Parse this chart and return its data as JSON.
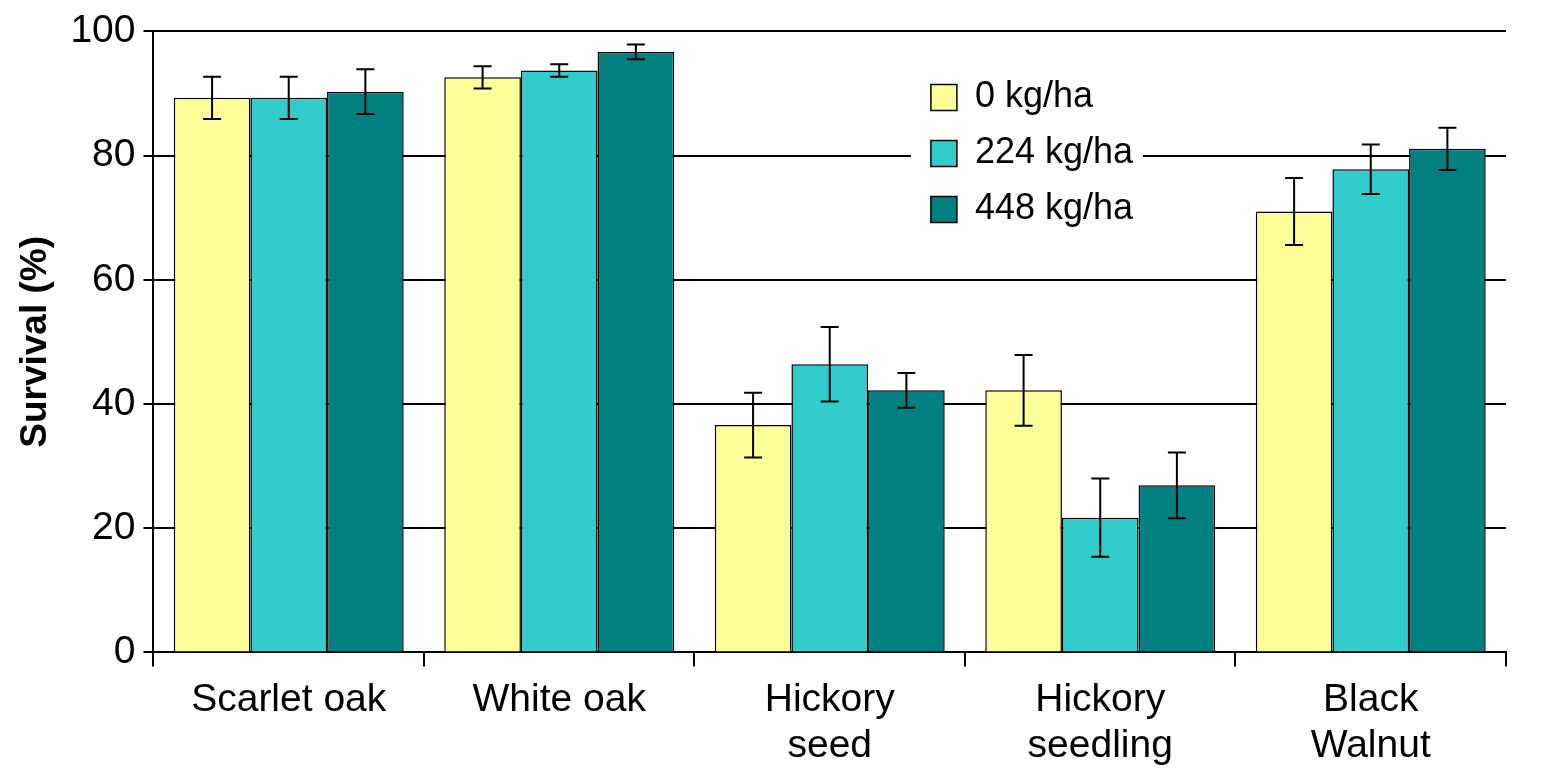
{
  "chart_data": {
    "type": "bar",
    "ylabel": "Survival (%)",
    "categories": [
      "Scarlet oak",
      "White oak",
      "Hickory seed",
      "Hickory seedling",
      "Black Walnut"
    ],
    "series": [
      {
        "name": "0 kg/ha",
        "color": "#ffff99",
        "values": [
          89.3,
          92.6,
          36.6,
          42.2,
          71.0
        ],
        "errors": [
          3.4,
          1.8,
          5.2,
          5.7,
          5.4
        ]
      },
      {
        "name": "224 kg/ha",
        "color": "#33cccc",
        "values": [
          89.3,
          93.7,
          46.4,
          21.7,
          77.8
        ],
        "errors": [
          3.4,
          1.0,
          6.0,
          6.3,
          4.0
        ]
      },
      {
        "name": "448 kg/ha",
        "color": "#008080",
        "values": [
          90.3,
          96.7,
          42.2,
          26.9,
          81.1
        ],
        "errors": [
          3.6,
          1.2,
          2.8,
          5.3,
          3.4
        ]
      }
    ],
    "ylim": [
      0,
      100
    ],
    "yticks": [
      0,
      20,
      40,
      60,
      80,
      100
    ],
    "grid": "y",
    "legend": "top right"
  }
}
